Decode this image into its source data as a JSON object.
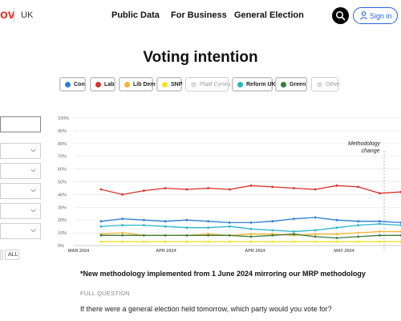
{
  "header": {
    "brand": "ov",
    "region": "UK",
    "nav": [
      {
        "label": "Public Data"
      },
      {
        "label": "For Business"
      },
      {
        "label": "General Election"
      }
    ],
    "signin_label": "Sign in"
  },
  "page_title": "Voting intention",
  "legend": [
    {
      "label": "Con",
      "color": "#2a7fd4",
      "active": true
    },
    {
      "label": "Lab",
      "color": "#d6312b",
      "active": true
    },
    {
      "label": "Lib Dem",
      "color": "#f2b631",
      "active": true
    },
    {
      "label": "SNP",
      "color": "#f3e221",
      "active": true
    },
    {
      "label": "Plaid Cymru",
      "color": "#dddddd",
      "active": false
    },
    {
      "label": "Reform UK",
      "color": "#29b5c8",
      "active": true
    },
    {
      "label": "Green",
      "color": "#3d7b3a",
      "active": true
    },
    {
      "label": "Other",
      "color": "#dddddd",
      "active": false
    }
  ],
  "filters": {
    "all_label": "ALL"
  },
  "chart_data": {
    "type": "line",
    "y_tick_labels": [
      "0%",
      "10%",
      "20%",
      "30%",
      "40%",
      "50%",
      "60%",
      "70%",
      "80%",
      "90%",
      "100%"
    ],
    "ylim": [
      0,
      100
    ],
    "x_tick_labels": [
      "MAR 2024",
      "APR 2024",
      "APR 2024",
      "MAY 2024"
    ],
    "annotation": [
      "Methodology",
      "change"
    ],
    "series": [
      {
        "name": "Lab",
        "color": "#d6312b",
        "values": [
          44,
          40,
          43,
          45,
          44,
          45,
          44,
          47,
          46,
          45,
          44,
          47,
          46,
          41,
          42
        ]
      },
      {
        "name": "Con",
        "color": "#2a7fd4",
        "values": [
          19,
          21,
          20,
          19,
          20,
          19,
          18,
          18,
          19,
          21,
          22,
          20,
          19,
          19,
          18
        ]
      },
      {
        "name": "Reform UK",
        "color": "#29b5c8",
        "values": [
          15,
          16,
          16,
          15,
          14,
          14,
          15,
          13,
          12,
          11,
          12,
          14,
          16,
          17,
          16
        ]
      },
      {
        "name": "Lib Dem",
        "color": "#f2b631",
        "values": [
          9,
          10,
          8,
          8,
          8,
          9,
          8,
          9,
          9,
          8,
          9,
          9,
          10,
          11,
          11
        ]
      },
      {
        "name": "Green",
        "color": "#3d7b3a",
        "values": [
          8,
          8,
          8,
          8,
          8,
          8,
          8,
          7,
          8,
          9,
          7,
          6,
          7,
          8,
          8
        ]
      },
      {
        "name": "SNP",
        "color": "#f3e221",
        "values": [
          3,
          3,
          3,
          3,
          3,
          3,
          3,
          3,
          3,
          3,
          3,
          3,
          3,
          3,
          3
        ]
      }
    ]
  },
  "note": "*New methodology implemented from 1 June 2024 mirroring our MRP methodology",
  "full_question_label": "FULL QUESTION",
  "full_question_text": "If there were a general election held tomorrow, which party would you vote for?"
}
